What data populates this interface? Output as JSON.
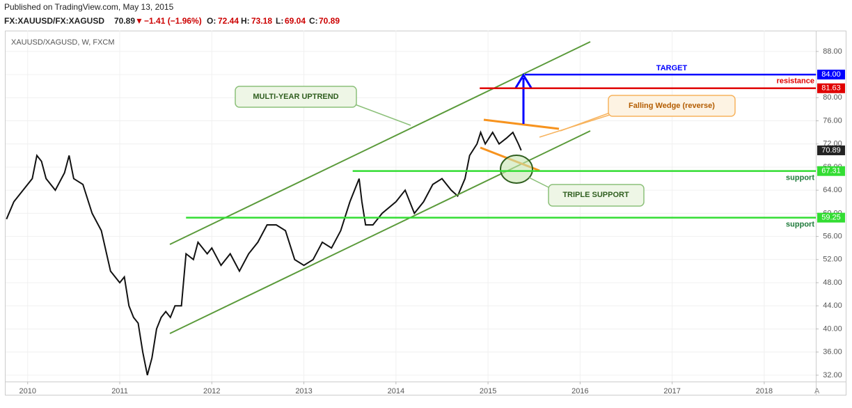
{
  "header": {
    "published": "Published on TradingView.com, May 13, 2015",
    "symbol": "FX:XAUUSD/FX:XAGUSD",
    "last": "70.89",
    "arrow": "▼",
    "change": "−1.41 (−1.96%)",
    "o_label": "O:",
    "open": "72.44",
    "h_label": "H:",
    "high": "73.18",
    "l_label": "L:",
    "low": "69.04",
    "c_label": "C:",
    "close": "70.89"
  },
  "chart_data": {
    "type": "line",
    "title": "XAUUSD/XAGUSD, W, FXCM",
    "x": [
      2009.77,
      2009.85,
      2009.95,
      2010.05,
      2010.1,
      2010.15,
      2010.2,
      2010.3,
      2010.4,
      2010.45,
      2010.5,
      2010.6,
      2010.7,
      2010.8,
      2010.9,
      2011.0,
      2011.05,
      2011.1,
      2011.15,
      2011.2,
      2011.25,
      2011.3,
      2011.35,
      2011.4,
      2011.45,
      2011.5,
      2011.55,
      2011.6,
      2011.67,
      2011.72,
      2011.8,
      2011.85,
      2011.95,
      2012.0,
      2012.1,
      2012.2,
      2012.3,
      2012.4,
      2012.5,
      2012.6,
      2012.7,
      2012.8,
      2012.9,
      2013.0,
      2013.1,
      2013.2,
      2013.3,
      2013.4,
      2013.5,
      2013.55,
      2013.6,
      2013.63,
      2013.67,
      2013.75,
      2013.85,
      2014.0,
      2014.1,
      2014.2,
      2014.3,
      2014.4,
      2014.5,
      2014.6,
      2014.67,
      2014.75,
      2014.8,
      2014.88,
      2014.92,
      2014.97,
      2015.05,
      2015.12,
      2015.2,
      2015.27,
      2015.33,
      2015.36
    ],
    "series": [
      {
        "name": "XAUUSD/XAGUSD",
        "color": "#111111",
        "values": [
          59,
          62,
          64,
          66,
          70,
          69,
          66,
          64,
          67,
          70,
          66,
          65,
          60,
          57,
          50,
          48,
          49,
          44,
          42,
          41,
          36,
          32,
          35,
          40,
          42,
          43,
          42,
          44,
          44,
          53,
          52,
          55,
          53,
          54,
          51,
          53,
          50,
          53,
          55,
          58,
          58,
          57,
          52,
          51,
          52,
          55,
          54,
          57,
          62,
          64,
          66,
          62,
          58,
          58,
          60,
          62,
          64,
          60,
          62,
          65,
          66,
          64,
          63,
          66,
          70,
          72,
          74,
          72,
          74,
          72,
          73,
          74,
          72,
          70.89
        ]
      }
    ],
    "xlim": [
      2009.76,
      2018.56
    ],
    "xticks": [
      2010,
      2011,
      2012,
      2013,
      2014,
      2015,
      2016,
      2017,
      2018
    ],
    "ylim": [
      30.9,
      91.6
    ],
    "yticks": [
      {
        "value": 32,
        "label": "32.00"
      },
      {
        "value": 36,
        "label": "36.00"
      },
      {
        "value": 40,
        "label": "40.00"
      },
      {
        "value": 44,
        "label": "44.00"
      },
      {
        "value": 48,
        "label": "48.00"
      },
      {
        "value": 52,
        "label": "52.00"
      },
      {
        "value": 56,
        "label": "56.00"
      },
      {
        "value": 60,
        "label": "60.00"
      },
      {
        "value": 64,
        "label": "64.00"
      },
      {
        "value": 68,
        "label": "68.00"
      },
      {
        "value": 72,
        "label": "72.00"
      },
      {
        "value": 76,
        "label": "76.00"
      },
      {
        "value": 80,
        "label": "80.00"
      },
      {
        "value": 84,
        "label": "84.00"
      },
      {
        "value": 88,
        "label": "88.00"
      }
    ],
    "grid": true,
    "levels": [
      {
        "value": 84,
        "label": "84.00",
        "color": "#0000ff",
        "x_start": 2015.4,
        "text": "TARGET"
      },
      {
        "value": 81.63,
        "label": "81.63",
        "color": "#e00000",
        "x_start": 2014.91,
        "text": "resistance"
      },
      {
        "value": 70.89,
        "label": "70.89",
        "color": "#222222",
        "x_start": 2018.56
      },
      {
        "value": 67.31,
        "label": "67.31",
        "color": "#33dd33",
        "x_start": 2013.53,
        "text": "support"
      },
      {
        "value": 59.25,
        "label": "59.25",
        "color": "#33dd33",
        "x_start": 2011.72,
        "text": "support"
      }
    ],
    "annotations": {
      "uptrend": "MULTI-YEAR UPTREND",
      "wedge": "Falling Wedge (reverse)",
      "triple": "TRIPLE SUPPORT"
    },
    "autoscale": "A"
  }
}
